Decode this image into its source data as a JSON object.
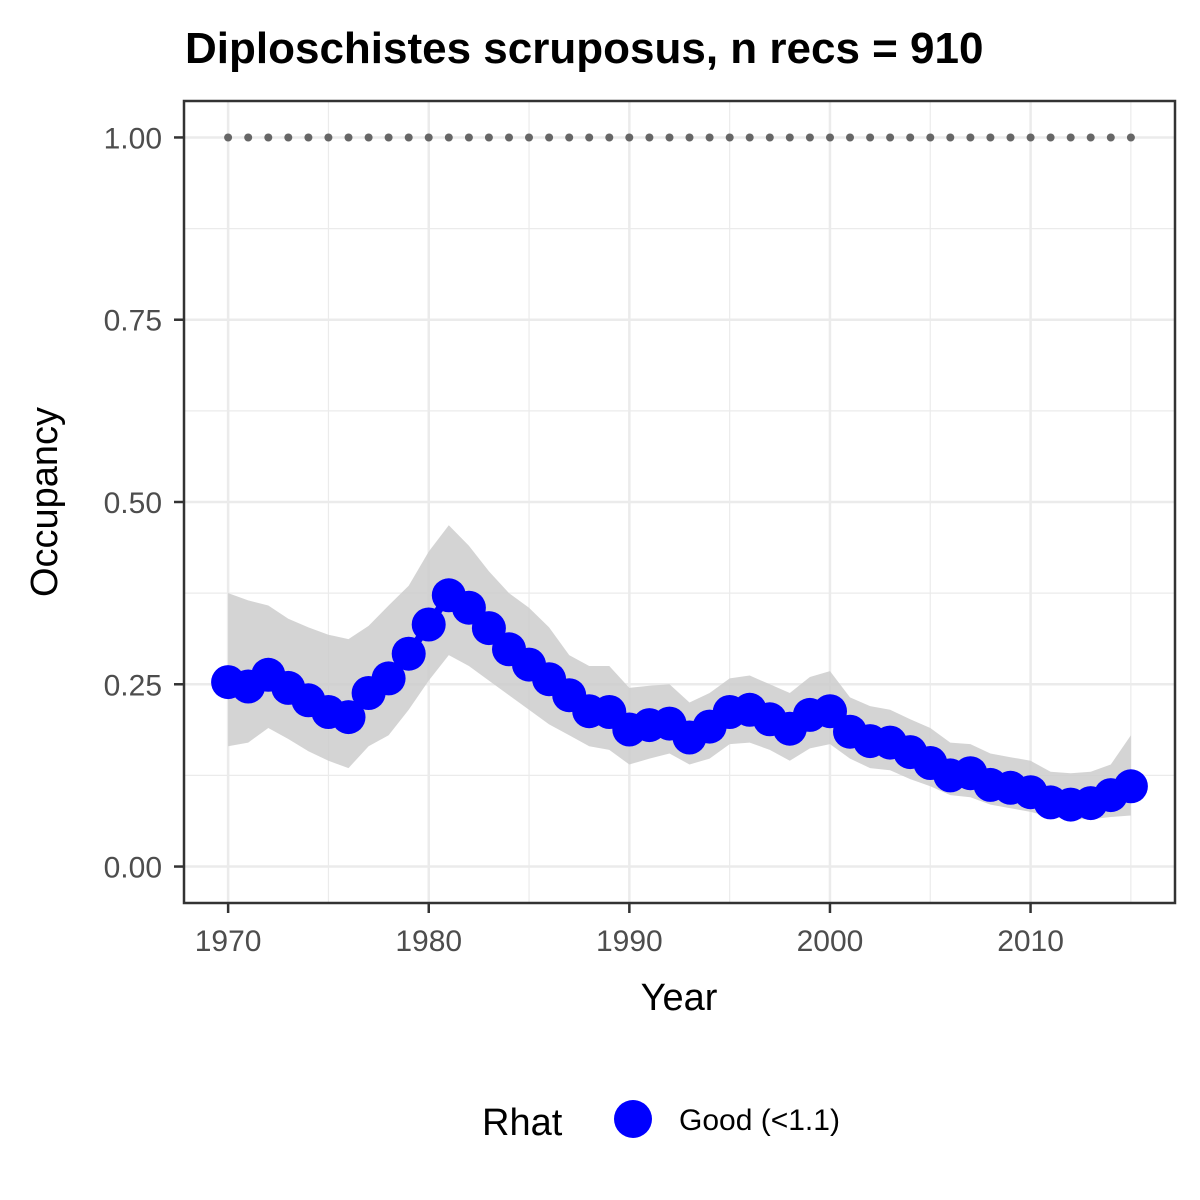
{
  "chart_data": {
    "type": "line",
    "title": "Diploschistes scruposus, n recs = 910",
    "xlabel": "Year",
    "ylabel": "Occupancy",
    "xlim": [
      1967.8,
      2017.2
    ],
    "ylim": [
      -0.05,
      1.05
    ],
    "x_ticks": [
      1970,
      1980,
      1990,
      2000,
      2010
    ],
    "x_tick_labels": [
      "1970",
      "1980",
      "1990",
      "2000",
      "2010"
    ],
    "y_ticks": [
      0,
      0.25,
      0.5,
      0.75,
      1.0
    ],
    "y_tick_labels": [
      "0.00",
      "0.25",
      "0.50",
      "0.75",
      "1.00"
    ],
    "grid": true,
    "series": [
      {
        "name": "Good (<1.1)",
        "color": "#0000ff",
        "x": [
          1970,
          1971,
          1972,
          1973,
          1974,
          1975,
          1976,
          1977,
          1978,
          1979,
          1980,
          1981,
          1982,
          1983,
          1984,
          1985,
          1986,
          1987,
          1988,
          1989,
          1990,
          1991,
          1992,
          1993,
          1994,
          1995,
          1996,
          1997,
          1998,
          1999,
          2000,
          2001,
          2002,
          2003,
          2004,
          2005,
          2006,
          2007,
          2008,
          2009,
          2010,
          2011,
          2012,
          2013,
          2014,
          2015
        ],
        "y": [
          0.253,
          0.247,
          0.263,
          0.245,
          0.228,
          0.212,
          0.205,
          0.238,
          0.258,
          0.292,
          0.332,
          0.372,
          0.355,
          0.327,
          0.298,
          0.277,
          0.257,
          0.235,
          0.213,
          0.212,
          0.188,
          0.194,
          0.196,
          0.177,
          0.192,
          0.212,
          0.215,
          0.202,
          0.189,
          0.208,
          0.213,
          0.185,
          0.172,
          0.17,
          0.157,
          0.142,
          0.125,
          0.128,
          0.112,
          0.108,
          0.102,
          0.088,
          0.085,
          0.087,
          0.098,
          0.11
        ],
        "lower": [
          0.165,
          0.17,
          0.19,
          0.175,
          0.158,
          0.145,
          0.135,
          0.165,
          0.18,
          0.215,
          0.255,
          0.29,
          0.275,
          0.255,
          0.235,
          0.215,
          0.195,
          0.18,
          0.165,
          0.16,
          0.14,
          0.148,
          0.155,
          0.14,
          0.148,
          0.168,
          0.17,
          0.16,
          0.145,
          0.162,
          0.168,
          0.148,
          0.135,
          0.132,
          0.12,
          0.11,
          0.098,
          0.095,
          0.085,
          0.08,
          0.075,
          0.068,
          0.065,
          0.065,
          0.068,
          0.07
        ],
        "upper": [
          0.375,
          0.365,
          0.358,
          0.34,
          0.328,
          0.318,
          0.312,
          0.33,
          0.358,
          0.385,
          0.432,
          0.468,
          0.44,
          0.405,
          0.375,
          0.355,
          0.328,
          0.29,
          0.275,
          0.275,
          0.245,
          0.248,
          0.25,
          0.225,
          0.238,
          0.258,
          0.262,
          0.25,
          0.238,
          0.26,
          0.268,
          0.232,
          0.22,
          0.215,
          0.202,
          0.19,
          0.17,
          0.168,
          0.155,
          0.15,
          0.145,
          0.13,
          0.128,
          0.13,
          0.14,
          0.18
        ]
      }
    ],
    "dotted_line": {
      "x": [
        1970,
        1971,
        1972,
        1973,
        1974,
        1975,
        1976,
        1977,
        1978,
        1979,
        1980,
        1981,
        1982,
        1983,
        1984,
        1985,
        1986,
        1987,
        1988,
        1989,
        1990,
        1991,
        1992,
        1993,
        1994,
        1995,
        1996,
        1997,
        1998,
        1999,
        2000,
        2001,
        2002,
        2003,
        2004,
        2005,
        2006,
        2007,
        2008,
        2009,
        2010,
        2011,
        2012,
        2013,
        2014,
        2015
      ],
      "y": 1.0,
      "color": "#666666"
    },
    "ribbon_color": "#cccccc",
    "legend": {
      "title": "Rhat",
      "label": "Good (<1.1)",
      "position": "bottom"
    }
  }
}
